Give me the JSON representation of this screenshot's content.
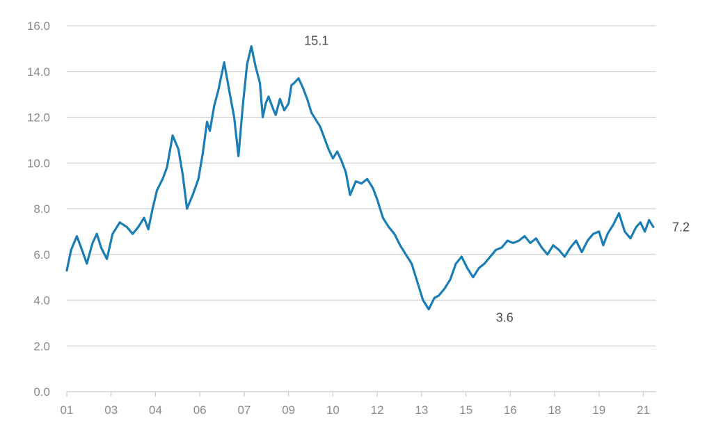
{
  "chart_data": {
    "type": "line",
    "title": "",
    "xlabel": "",
    "ylabel": "",
    "ylim": [
      0,
      16
    ],
    "yticks": [
      "0.0",
      "2.0",
      "4.0",
      "6.0",
      "8.0",
      "10.0",
      "12.0",
      "14.0",
      "16.0"
    ],
    "xlim": [
      2001.0,
      2021.6
    ],
    "xticks": [
      {
        "label": "01",
        "x": 2001.0
      },
      {
        "label": "03",
        "x": 2002.55
      },
      {
        "label": "04",
        "x": 2004.1
      },
      {
        "label": "06",
        "x": 2005.65
      },
      {
        "label": "07",
        "x": 2007.2
      },
      {
        "label": "09",
        "x": 2008.75
      },
      {
        "label": "10",
        "x": 2010.3
      },
      {
        "label": "12",
        "x": 2011.85
      },
      {
        "label": "13",
        "x": 2013.4
      },
      {
        "label": "15",
        "x": 2014.95
      },
      {
        "label": "16",
        "x": 2016.5
      },
      {
        "label": "18",
        "x": 2018.05
      },
      {
        "label": "19",
        "x": 2019.6
      },
      {
        "label": "21",
        "x": 2021.15
      }
    ],
    "grid": true,
    "line_color": "#1b7db5",
    "series": [
      {
        "name": "",
        "x": [
          2001.0,
          2001.15,
          2001.35,
          2001.5,
          2001.7,
          2001.9,
          2002.05,
          2002.2,
          2002.4,
          2002.6,
          2002.85,
          2003.1,
          2003.3,
          2003.5,
          2003.7,
          2003.85,
          2004.0,
          2004.15,
          2004.35,
          2004.5,
          2004.7,
          2004.9,
          2005.05,
          2005.2,
          2005.4,
          2005.6,
          2005.75,
          2005.9,
          2006.0,
          2006.15,
          2006.3,
          2006.5,
          2006.7,
          2006.85,
          2007.0,
          2007.15,
          2007.3,
          2007.45,
          2007.6,
          2007.75,
          2007.85,
          2007.95,
          2008.05,
          2008.2,
          2008.3,
          2008.45,
          2008.6,
          2008.75,
          2008.85,
          2008.95,
          2009.1,
          2009.25,
          2009.4,
          2009.55,
          2009.7,
          2009.85,
          2010.0,
          2010.15,
          2010.3,
          2010.45,
          2010.6,
          2010.75,
          2010.9,
          2011.1,
          2011.3,
          2011.5,
          2011.7,
          2011.85,
          2012.05,
          2012.25,
          2012.45,
          2012.65,
          2012.85,
          2013.05,
          2013.25,
          2013.45,
          2013.65,
          2013.85,
          2014.0,
          2014.2,
          2014.4,
          2014.6,
          2014.8,
          2015.0,
          2015.2,
          2015.4,
          2015.6,
          2015.8,
          2016.0,
          2016.2,
          2016.4,
          2016.6,
          2016.8,
          2017.0,
          2017.2,
          2017.4,
          2017.6,
          2017.8,
          2018.0,
          2018.2,
          2018.4,
          2018.6,
          2018.8,
          2019.0,
          2019.2,
          2019.4,
          2019.6,
          2019.75,
          2019.9,
          2020.1,
          2020.3,
          2020.5,
          2020.7,
          2020.9,
          2021.05,
          2021.2,
          2021.35,
          2021.5
        ],
        "values": [
          5.3,
          6.2,
          6.8,
          6.3,
          5.6,
          6.5,
          6.9,
          6.3,
          5.8,
          6.9,
          7.4,
          7.2,
          6.9,
          7.2,
          7.6,
          7.1,
          8.0,
          8.8,
          9.3,
          9.8,
          11.2,
          10.6,
          9.5,
          8.0,
          8.6,
          9.3,
          10.4,
          11.8,
          11.4,
          12.5,
          13.2,
          14.4,
          13.0,
          12.0,
          10.3,
          12.5,
          14.3,
          15.1,
          14.2,
          13.5,
          12.0,
          12.6,
          12.9,
          12.4,
          12.1,
          12.8,
          12.3,
          12.6,
          13.4,
          13.5,
          13.7,
          13.3,
          12.8,
          12.2,
          11.9,
          11.6,
          11.1,
          10.6,
          10.2,
          10.5,
          10.1,
          9.6,
          8.6,
          9.2,
          9.1,
          9.3,
          8.9,
          8.4,
          7.6,
          7.2,
          6.9,
          6.4,
          6.0,
          5.6,
          4.8,
          4.0,
          3.6,
          4.1,
          4.2,
          4.5,
          4.9,
          5.6,
          5.9,
          5.4,
          5.0,
          5.4,
          5.6,
          5.9,
          6.2,
          6.3,
          6.6,
          6.5,
          6.6,
          6.8,
          6.5,
          6.7,
          6.3,
          6.0,
          6.4,
          6.2,
          5.9,
          6.3,
          6.6,
          6.1,
          6.6,
          6.9,
          7.0,
          6.4,
          6.9,
          7.3,
          7.8,
          7.0,
          6.7,
          7.2,
          7.4,
          7.0,
          7.5,
          7.2
        ]
      }
    ],
    "annotations": [
      {
        "text": "15.1",
        "x": 2009.3,
        "y": 15.1
      },
      {
        "text": "3.6",
        "x": 2016.0,
        "y": 3.6
      },
      {
        "text": "7.2",
        "x": 2021.55,
        "y": 7.2
      }
    ]
  }
}
